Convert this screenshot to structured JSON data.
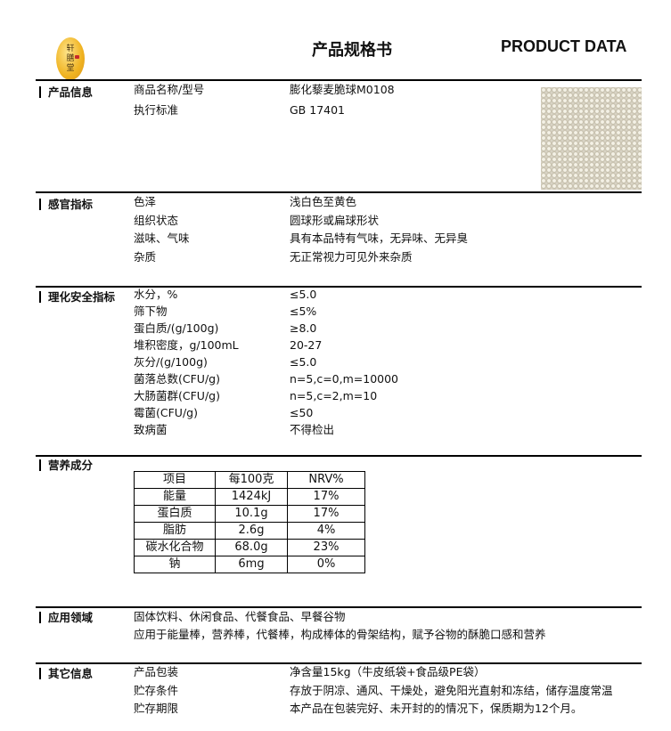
{
  "header": {
    "logo_text": "轩膳堂",
    "title": "产品规格书",
    "title_en": "PRODUCT DATA"
  },
  "product_info": {
    "label": "产品信息",
    "rows": [
      {
        "k": "商品名称/型号",
        "v": "膨化藜麦脆球M0108"
      },
      {
        "k": "执行标准",
        "v": "GB 17401"
      }
    ]
  },
  "sensory": {
    "label": "感官指标",
    "rows": [
      {
        "k": "色泽",
        "v": "浅白色至黄色"
      },
      {
        "k": "组织状态",
        "v": "圆球形或扁球形状"
      },
      {
        "k": "滋味、气味",
        "v": "具有本品特有气味，无异味、无异臭"
      },
      {
        "k": "杂质",
        "v": "无正常视力可见外来杂质"
      }
    ]
  },
  "physchem": {
    "label": "理化安全指标",
    "rows": [
      {
        "k": "水分，%",
        "v": "≤5.0"
      },
      {
        "k": "筛下物",
        "v": "≤5%"
      },
      {
        "k": "蛋白质/(g/100g)",
        "v": "≥8.0"
      },
      {
        "k": "堆积密度，g/100mL",
        "v": "20-27"
      },
      {
        "k": "灰分/(g/100g)",
        "v": "≤5.0"
      },
      {
        "k": "菌落总数(CFU/g)",
        "v": "n=5,c=0,m=10000"
      },
      {
        "k": "大肠菌群(CFU/g)",
        "v": "n=5,c=2,m=10"
      },
      {
        "k": "霉菌(CFU/g)",
        "v": "≤50"
      },
      {
        "k": "致病菌",
        "v": "不得检出"
      }
    ]
  },
  "nutrition": {
    "label": "营养成分",
    "header": [
      "项目",
      "每100克",
      "NRV%"
    ],
    "rows": [
      [
        "能量",
        "1424kJ",
        "17%"
      ],
      [
        "蛋白质",
        "10.1g",
        "17%"
      ],
      [
        "脂肪",
        "2.6g",
        "4%"
      ],
      [
        "碳水化合物",
        "68.0g",
        "23%"
      ],
      [
        "钠",
        "6mg",
        "0%"
      ]
    ]
  },
  "application": {
    "label": "应用领域",
    "lines": [
      "固体饮料、休闲食品、代餐食品、早餐谷物",
      "应用于能量棒，营养棒，代餐棒，构成棒体的骨架结构，赋予谷物的酥脆口感和营养"
    ]
  },
  "other": {
    "label": "其它信息",
    "rows": [
      {
        "k": "产品包装",
        "v": "净含量15kg（牛皮纸袋+食品级PE袋）"
      },
      {
        "k": "贮存条件",
        "v": "存放于阴凉、通风、干燥处，避免阳光直射和冻结，储存温度常温"
      },
      {
        "k": "贮存期限",
        "v": "本产品在包装完好、未开封的的情况下，保质期为12个月。"
      }
    ]
  }
}
